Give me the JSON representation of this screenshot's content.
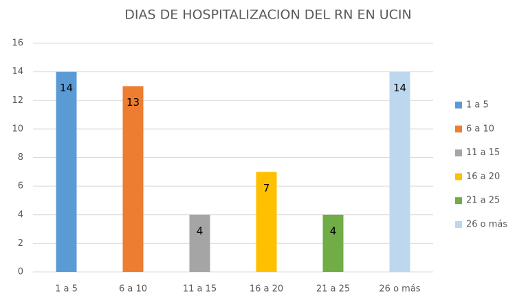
{
  "chart_data": {
    "type": "bar",
    "title": "DIAS DE HOSPITALIZACION DEL RN EN UCIN",
    "categories": [
      "1 a 5",
      "6 a 10",
      "11 a 15",
      "16 a 20",
      "21 a 25",
      "26 o más"
    ],
    "values": [
      14,
      13,
      4,
      7,
      4,
      14
    ],
    "colors": [
      "#5b9bd5",
      "#ed7d31",
      "#a5a5a5",
      "#ffc000",
      "#70ad47",
      "#bdd7ee"
    ],
    "ylim": [
      0,
      16
    ],
    "yticks": [
      0,
      2,
      4,
      6,
      8,
      10,
      12,
      14,
      16
    ],
    "grid": true,
    "legend": "right"
  }
}
